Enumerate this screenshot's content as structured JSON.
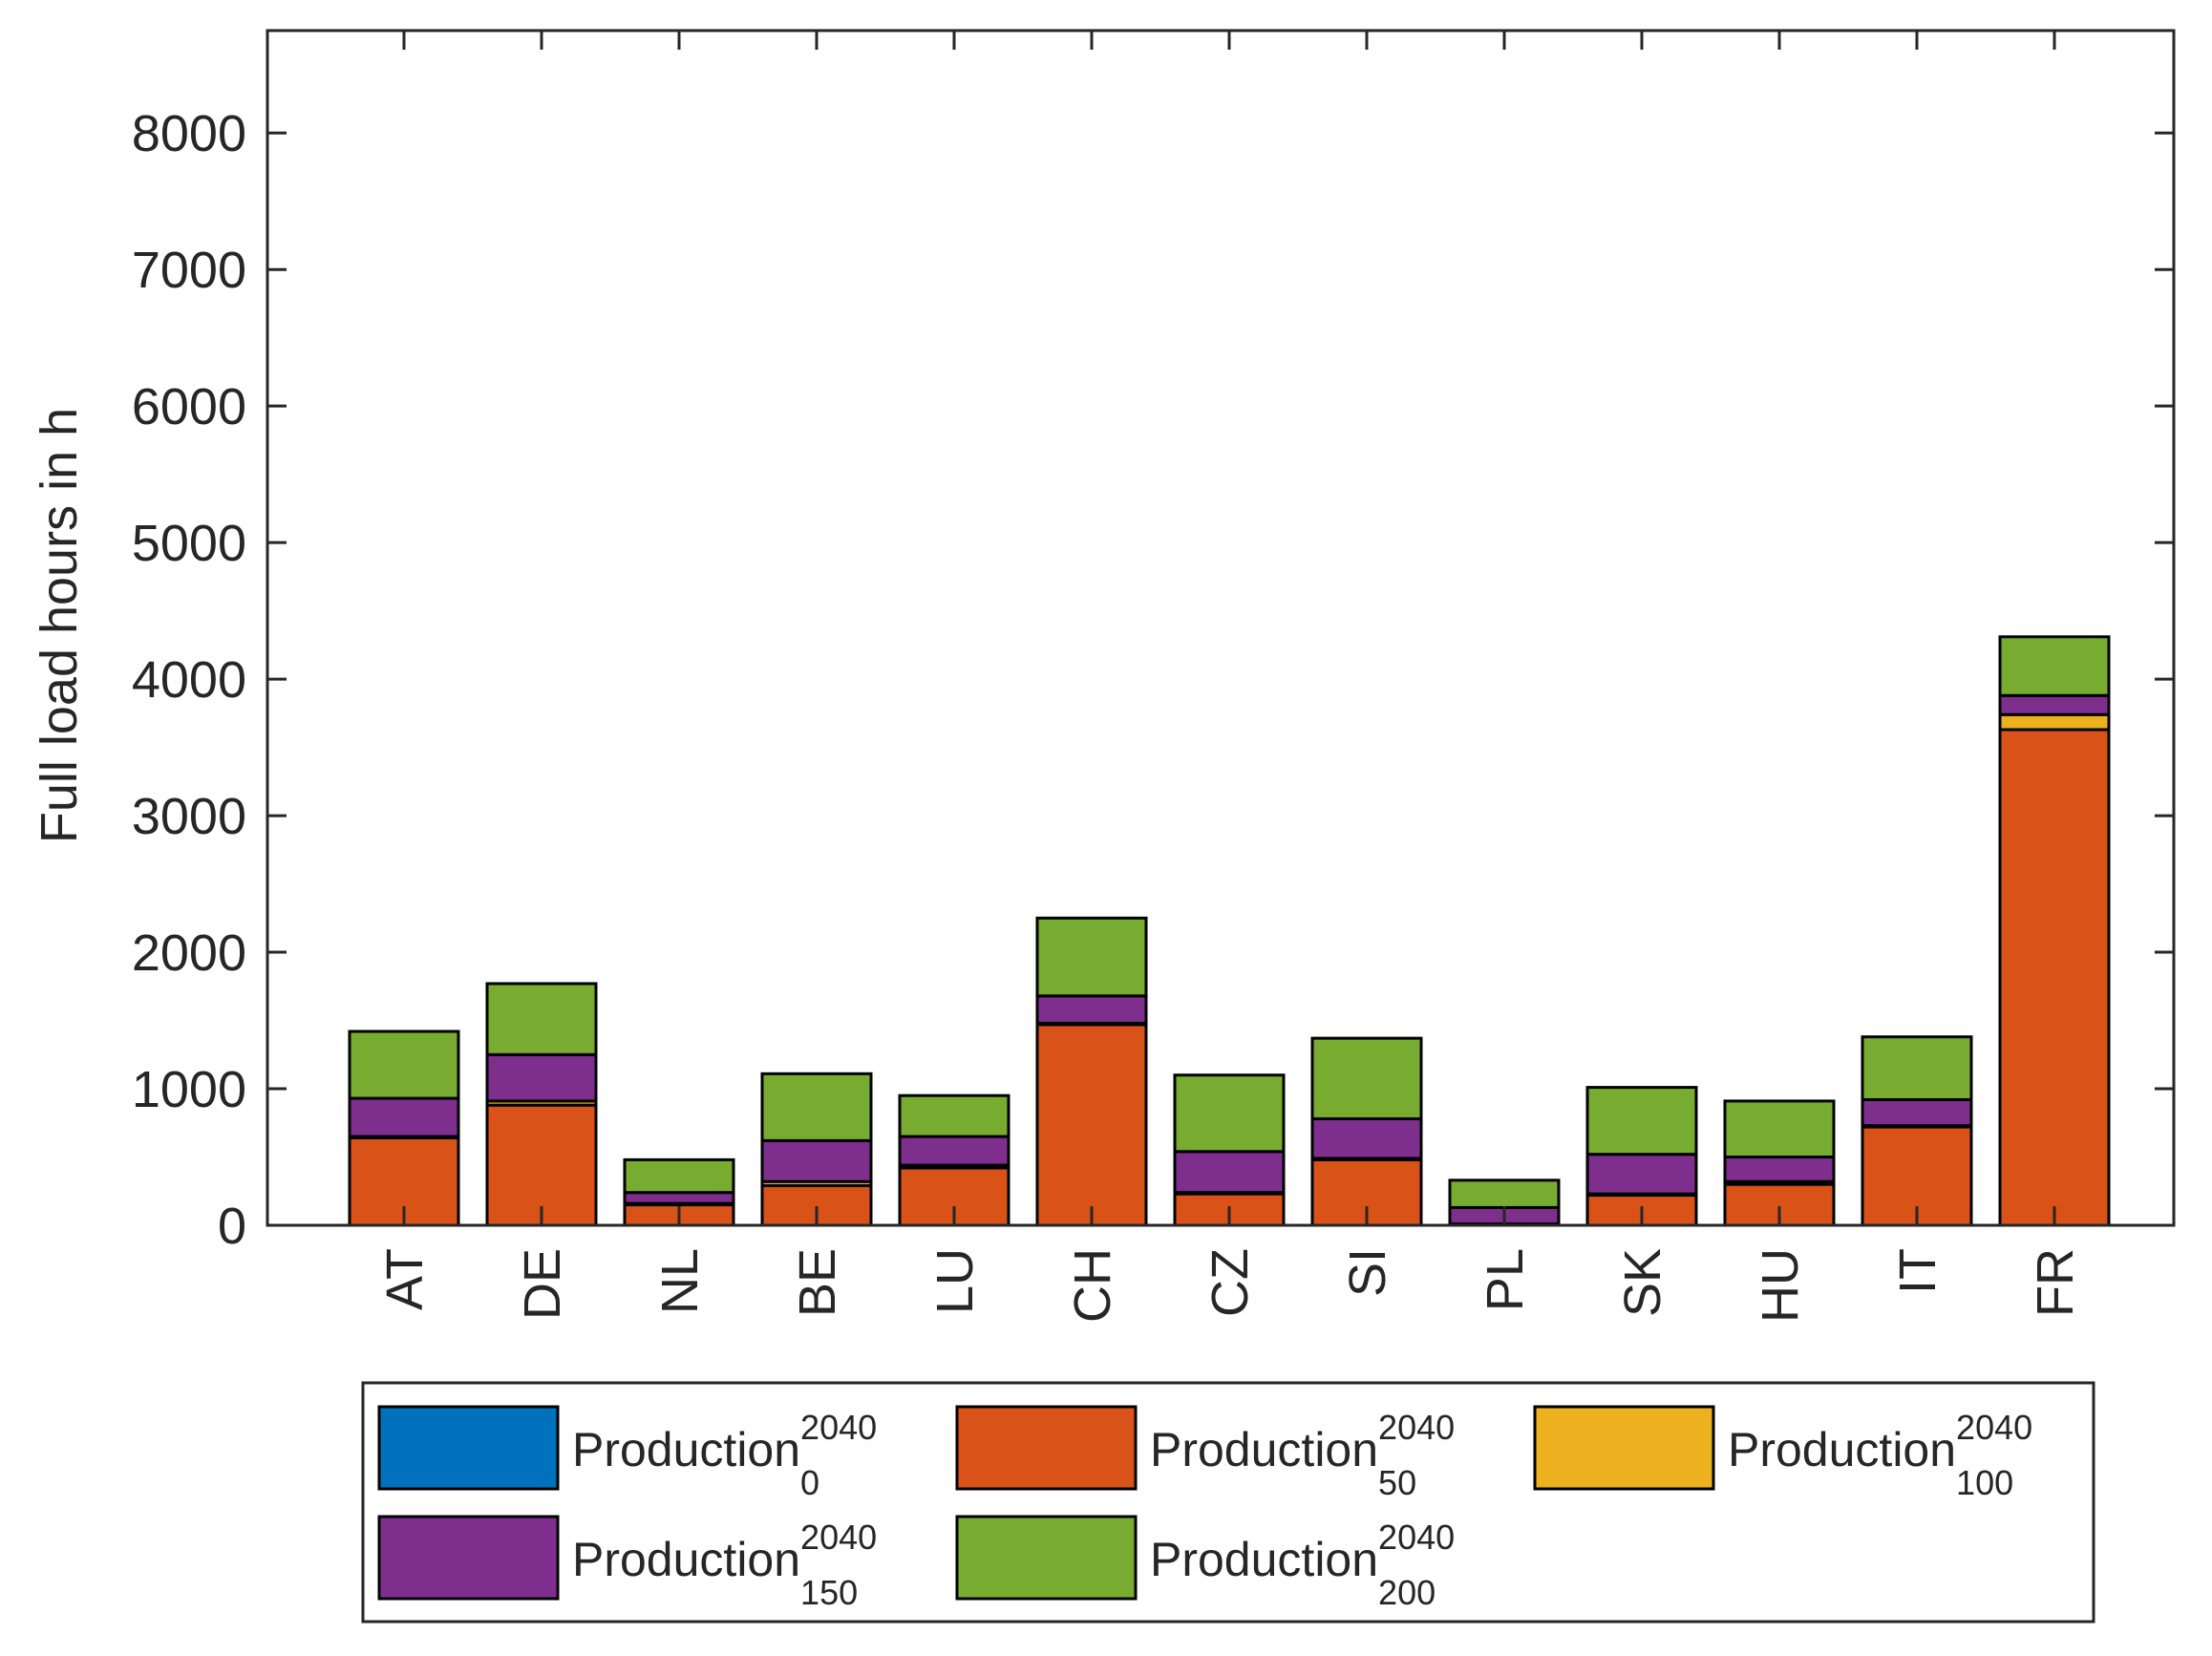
{
  "chart_data": {
    "type": "bar",
    "stacked": true,
    "title": "",
    "xlabel": "",
    "ylabel": "Full load hours in h",
    "ylim": [
      0,
      8750
    ],
    "yticks": [
      0,
      1000,
      2000,
      3000,
      4000,
      5000,
      6000,
      7000,
      8000
    ],
    "ytick_labels": [
      "0",
      "1000",
      "2000",
      "3000",
      "4000",
      "5000",
      "6000",
      "7000",
      "8000"
    ],
    "categories": [
      "AT",
      "DE",
      "NL",
      "BE",
      "LU",
      "CH",
      "CZ",
      "SI",
      "PL",
      "SK",
      "HU",
      "IT",
      "FR"
    ],
    "series": [
      {
        "name": "Production",
        "sup": "2040",
        "sub": "0",
        "color": "#0072BD",
        "values": [
          0,
          0,
          0,
          0,
          0,
          0,
          0,
          0,
          0,
          0,
          0,
          0,
          0
        ]
      },
      {
        "name": "Production",
        "sup": "2040",
        "sub": "50",
        "color": "#D95319",
        "values": [
          640,
          880,
          150,
          290,
          420,
          1470,
          230,
          480,
          10,
          220,
          300,
          720,
          3630
        ]
      },
      {
        "name": "Production",
        "sup": "2040",
        "sub": "100",
        "color": "#EDB120",
        "values": [
          10,
          30,
          10,
          30,
          20,
          10,
          10,
          10,
          0,
          10,
          20,
          10,
          110
        ]
      },
      {
        "name": "Production",
        "sup": "2040",
        "sub": "150",
        "color": "#7E2F8E",
        "values": [
          280,
          340,
          80,
          300,
          210,
          200,
          300,
          290,
          120,
          290,
          180,
          190,
          140
        ]
      },
      {
        "name": "Production",
        "sup": "2040",
        "sub": "200",
        "color": "#77AC30",
        "values": [
          490,
          520,
          240,
          490,
          300,
          570,
          560,
          590,
          200,
          490,
          410,
          460,
          430
        ]
      }
    ],
    "legend_position": "bottom-outside",
    "grid": false
  }
}
